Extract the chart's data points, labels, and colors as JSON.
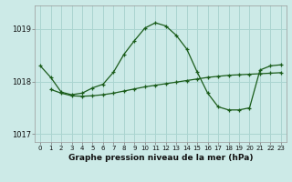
{
  "background_color": "#cceae7",
  "grid_color": "#aad4d0",
  "line_color": "#1a5c1a",
  "xlabel": "Graphe pression niveau de la mer (hPa)",
  "xlim": [
    -0.5,
    23.5
  ],
  "ylim": [
    1016.85,
    1019.45
  ],
  "yticks": [
    1017,
    1018,
    1019
  ],
  "xticks": [
    0,
    1,
    2,
    3,
    4,
    5,
    6,
    7,
    8,
    9,
    10,
    11,
    12,
    13,
    14,
    15,
    16,
    17,
    18,
    19,
    20,
    21,
    22,
    23
  ],
  "s1_x": [
    0,
    1,
    2,
    3,
    4,
    5,
    6,
    7,
    8,
    9,
    10,
    11,
    12,
    13,
    14,
    15,
    16,
    17,
    18,
    19,
    20,
    21,
    22,
    23
  ],
  "s1_y": [
    1018.3,
    1018.08,
    1017.8,
    1017.75,
    1017.78,
    1017.88,
    1017.95,
    1018.18,
    1018.52,
    1018.78,
    1019.02,
    1019.12,
    1019.06,
    1018.88,
    1018.62,
    1018.18,
    1017.78,
    1017.52,
    1017.46,
    1017.46,
    1017.5,
    1018.22,
    1018.3,
    1018.32
  ],
  "s2_x": [
    1,
    2,
    3,
    4,
    5,
    6,
    7,
    8,
    9,
    10,
    11,
    12,
    13,
    14,
    15,
    16,
    17,
    18,
    19,
    20,
    21,
    22,
    23
  ],
  "s2_y": [
    1017.85,
    1017.78,
    1017.73,
    1017.72,
    1017.73,
    1017.75,
    1017.78,
    1017.82,
    1017.86,
    1017.9,
    1017.93,
    1017.96,
    1017.99,
    1018.02,
    1018.05,
    1018.08,
    1018.1,
    1018.12,
    1018.13,
    1018.14,
    1018.15,
    1018.16,
    1018.17
  ]
}
